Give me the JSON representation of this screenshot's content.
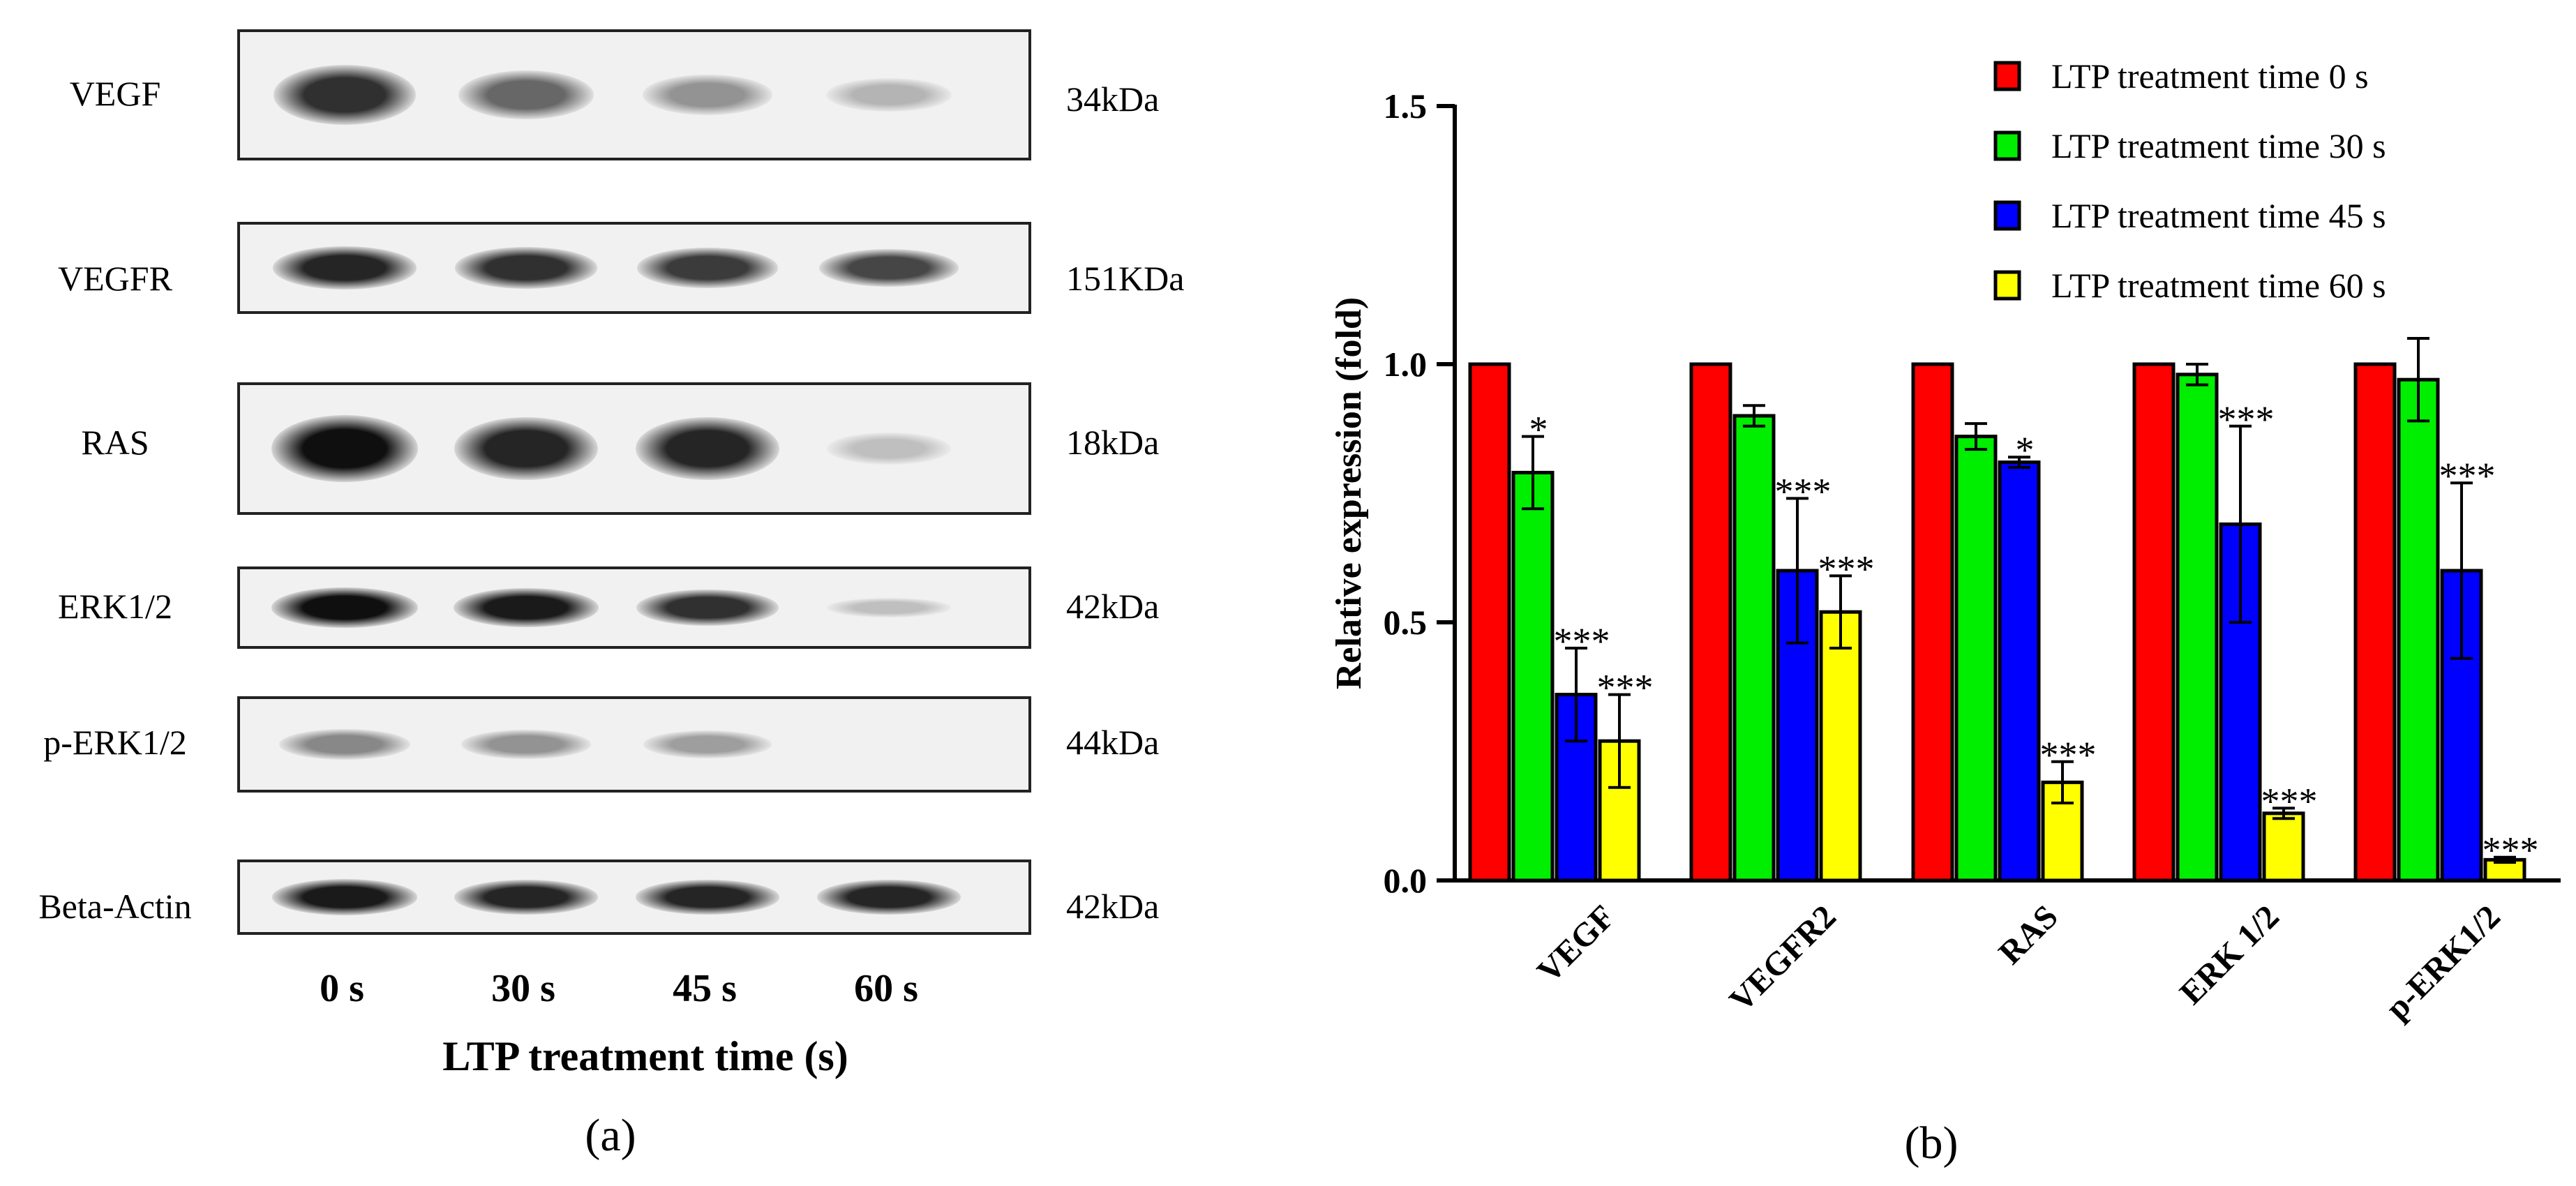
{
  "panel_a": {
    "letter": "a",
    "lanes": [
      "0 s",
      "30 s",
      "45 s",
      "60 s"
    ],
    "xlabel": "LTP treatment time (s)",
    "blots": [
      {
        "name": "VEGF",
        "size": "34kDa",
        "intensity": [
          0.85,
          0.6,
          0.4,
          0.25
        ]
      },
      {
        "name": "VEGFR",
        "size": "151KDa",
        "intensity": [
          0.9,
          0.85,
          0.8,
          0.75
        ]
      },
      {
        "name": "RAS",
        "size": "18kDa",
        "intensity": [
          1.0,
          0.9,
          0.9,
          0.2
        ]
      },
      {
        "name": "ERK1/2",
        "size": "42kDa",
        "intensity": [
          1.0,
          0.95,
          0.85,
          0.2
        ]
      },
      {
        "name": "p-ERK1/2",
        "size": "44kDa",
        "intensity": [
          0.45,
          0.4,
          0.35,
          0.0
        ]
      },
      {
        "name": "Beta-Actin",
        "size": "42kDa",
        "intensity": [
          0.95,
          0.9,
          0.9,
          0.9
        ]
      }
    ]
  },
  "panel_b": {
    "letter": "b"
  },
  "chart_data": {
    "type": "bar",
    "categories": [
      "VEGF",
      "VEGFR2",
      "RAS",
      "ERK 1/2",
      "p-ERK1/2"
    ],
    "series": [
      {
        "name": "LTP treatment time  0 s",
        "color": "#ff0000",
        "values": [
          1.0,
          1.0,
          1.0,
          1.0,
          1.0
        ],
        "errors": [
          0,
          0,
          0,
          0,
          0
        ],
        "significance": [
          "",
          "",
          "",
          "",
          ""
        ]
      },
      {
        "name": "LTP treatment time 30 s",
        "color": "#00ee00",
        "values": [
          0.79,
          0.9,
          0.86,
          0.98,
          0.97
        ],
        "errors": [
          0.07,
          0.02,
          0.025,
          0.02,
          0.08
        ],
        "significance": [
          "*",
          "",
          "",
          "",
          ""
        ]
      },
      {
        "name": "LTP treatment time 45 s",
        "color": "#0000ff",
        "values": [
          0.36,
          0.6,
          0.81,
          0.69,
          0.6
        ],
        "errors": [
          0.09,
          0.14,
          0.01,
          0.19,
          0.17
        ],
        "significance": [
          "***",
          "***",
          "*",
          "***",
          "***"
        ]
      },
      {
        "name": "LTP treatment time 60 s",
        "color": "#ffff00",
        "values": [
          0.27,
          0.52,
          0.19,
          0.13,
          0.04
        ],
        "errors": [
          0.09,
          0.07,
          0.04,
          0.01,
          0.005
        ],
        "significance": [
          "***",
          "***",
          "***",
          "***",
          "***"
        ]
      }
    ],
    "ylabel": "Relative expression (fold)",
    "ylim": [
      0,
      1.5
    ],
    "yticks": [
      "0.0",
      "0.5",
      "1.0",
      "1.5"
    ],
    "ytick_values": [
      0,
      0.5,
      1.0,
      1.5
    ],
    "grid": false,
    "legend_position": "top-right"
  }
}
